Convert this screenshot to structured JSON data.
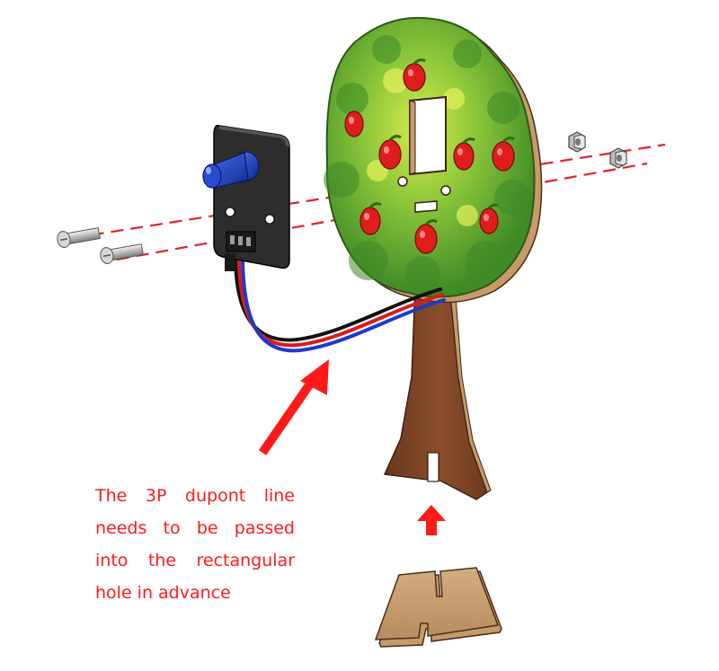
{
  "instruction": {
    "text": "The 3P dupont line needs to be passed into the rectangular hole in advance"
  },
  "colors": {
    "arrow_red": "#ff1a1a",
    "dashed_line_red": "#e32222",
    "foliage_green": "#5aa52c",
    "foliage_light": "#c9e23a",
    "trunk_brown": "#7a4325",
    "wood_edge": "#c79a6a",
    "apple_red": "#e01d1d",
    "module_black": "#2d2d2d",
    "led_blue": "#1737b8"
  },
  "icons": [
    "screw-icon",
    "nut-icon",
    "apple-icon",
    "arrow-icon"
  ]
}
